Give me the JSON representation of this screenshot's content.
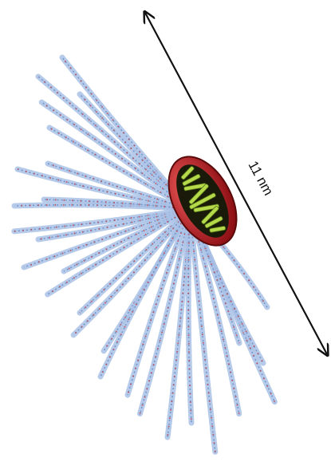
{
  "annotation": {
    "label": "11 nm"
  }
}
